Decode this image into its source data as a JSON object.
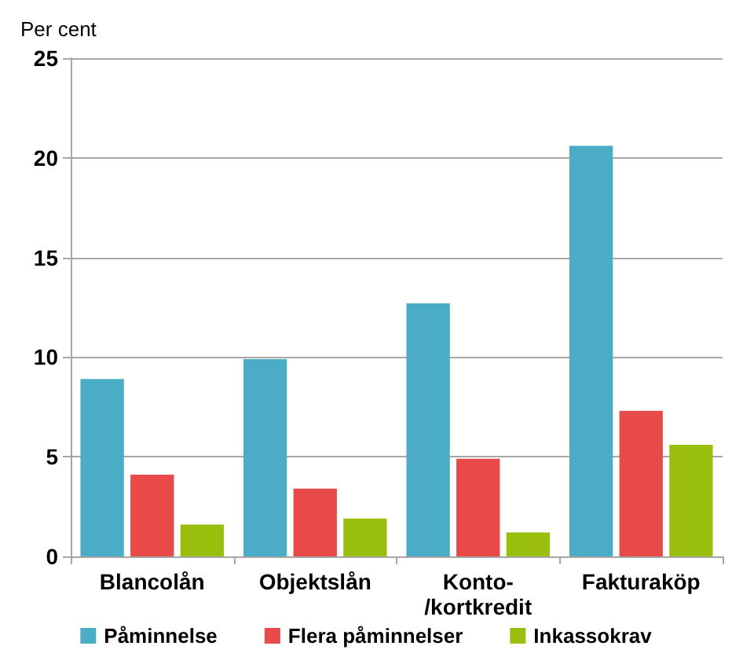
{
  "chart_data": {
    "type": "bar",
    "ylabel": "Per cent",
    "categories": [
      "Blancolån",
      "Objektslån",
      "Konto-\n/kortkredit",
      "Fakturaköp"
    ],
    "series": [
      {
        "name": "Påminnelse",
        "color": "#4bacc6",
        "values": [
          8.9,
          9.9,
          12.7,
          20.6
        ]
      },
      {
        "name": "Flera påminnelser",
        "color": "#e84a4a",
        "values": [
          4.1,
          3.4,
          4.9,
          7.3
        ]
      },
      {
        "name": "Inkassokrav",
        "color": "#99bf0c",
        "values": [
          1.6,
          1.9,
          1.2,
          5.6
        ]
      }
    ],
    "ylim": [
      0,
      25
    ],
    "yticks": [
      0,
      5,
      10,
      15,
      20,
      25
    ],
    "grid": "y",
    "legend": "bottom"
  }
}
